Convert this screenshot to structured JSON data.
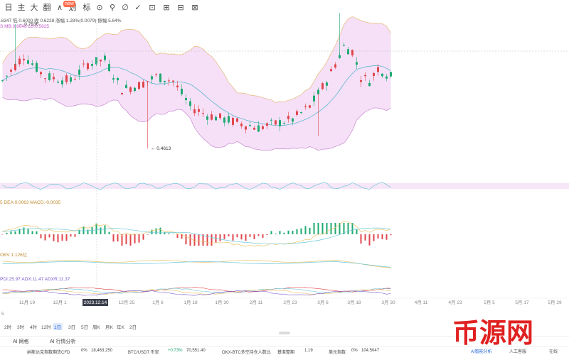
{
  "toolbar": {
    "items": [
      "日",
      "主",
      "大",
      "翻",
      "∧",
      "划",
      "标",
      "⊙",
      "⚲",
      "∅",
      "✓",
      "⊡",
      "⊞",
      "⊟",
      "⊠",
      "⊕",
      "⊗",
      "⊕"
    ],
    "badge": "new"
  },
  "info": {
    "line1": ".6347  低 0.6000  收 0.6228  涨幅 1.28%(0.0079)  振幅 5.64%",
    "line2_boll": "S MB:0.6648  LB:0.5825",
    "dif_line": "5  DEA:0.0063  MACD:-0.0035",
    "obv_line": "OBV 1.126亿",
    "dmi_line": "PDI:25.97  ADX:11.47  ADXR:11.37"
  },
  "price_labels": {
    "high": "← 0.7536",
    "low": "← 0.4613"
  },
  "x_axis": {
    "labels": [
      "11月 19",
      "12月 1",
      "2023.12.14",
      "12月 25",
      "1月 6",
      "1月 18",
      "1月 30",
      "2月 11",
      "2月 23",
      "3月 6",
      "3月 18",
      "3月 30",
      "4月 11",
      "4月 23",
      "5月 5",
      "5月 17",
      "5月 29"
    ],
    "highlight": "2023.12.14",
    "left_tag": "5"
  },
  "periods": {
    "items": [
      "2时",
      "3时",
      "4时",
      "12时",
      "1日",
      "3日",
      "5日",
      "周K",
      "月K",
      "年K",
      "2日"
    ],
    "active": "1日"
  },
  "ai_tabs": {
    "items": [
      "AI 网格",
      "AI 行情分析"
    ]
  },
  "ticker": {
    "item1_name": "纳斯达克指数期货CFD",
    "item1_change": "0%",
    "item1_price": "18,463.250",
    "item2_name": "BTC/USDT 币安",
    "item2_change": "+0.73%",
    "item2_price": "70,551.40",
    "item3_name": "OKX-BTC多空持仓人数比",
    "item3_label": "基准整期",
    "item3_value": "1.19",
    "item4_name": "美元指数",
    "item4_change": "0%",
    "item4_value": "104.5047",
    "tool1": "AI智能分析",
    "tool2": "人工客服",
    "tool3": "在线"
  },
  "watermark": {
    "text": "币源网"
  },
  "chart_data": {
    "type": "candlestick",
    "title": "",
    "xlabel": "",
    "ylabel": "",
    "annotations": [
      {
        "label": "0.7536",
        "value": 0.7536
      },
      {
        "label": "0.4613",
        "value": 0.4613
      }
    ],
    "indicators": [
      "BOLL",
      "MACD",
      "OBV",
      "DMI"
    ],
    "colors": {
      "up": "#1eaa72",
      "down": "#e0464c",
      "boll_band_fill": "#f2d8f5",
      "boll_upper": "#e8b878",
      "boll_mid": "#48b3c8"
    }
  }
}
